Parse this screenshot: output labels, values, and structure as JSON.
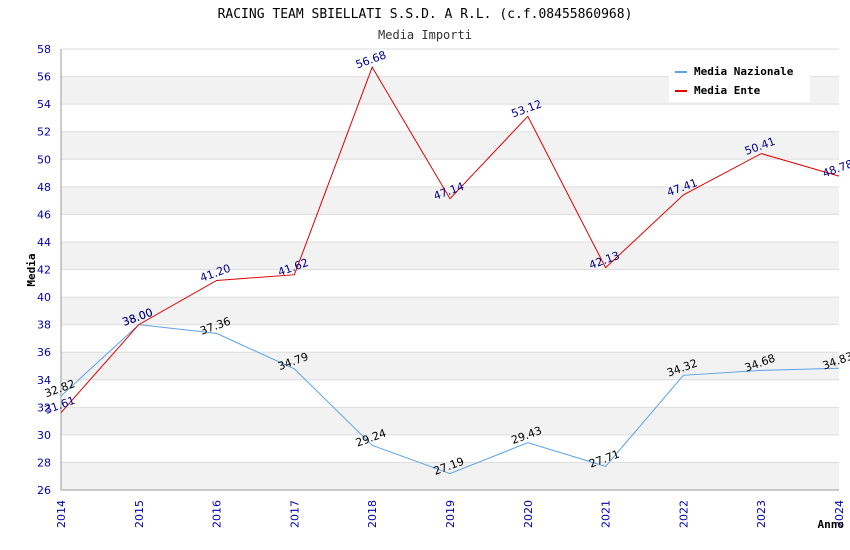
{
  "chart_data": {
    "type": "line",
    "title": "RACING TEAM SBIELLATI S.S.D. A R.L. (c.f.08455860968)",
    "subtitle": "Media Importi",
    "xlabel": "Anno",
    "ylabel": "Media",
    "x": [
      "2014",
      "2015",
      "2016",
      "2017",
      "2018",
      "2019",
      "2020",
      "2021",
      "2022",
      "2023",
      "2024"
    ],
    "ylim": [
      26,
      58
    ],
    "yticks": [
      "26",
      "28",
      "30",
      "32",
      "34",
      "36",
      "38",
      "40",
      "42",
      "44",
      "46",
      "48",
      "50",
      "52",
      "54",
      "56",
      "58"
    ],
    "grid": true,
    "legend_position": "top-right",
    "series": [
      {
        "name": "Media Nazionale",
        "color": "#5ba3e6",
        "label_color": "#000000",
        "values": [
          32.82,
          38.0,
          37.36,
          34.79,
          29.24,
          27.19,
          29.43,
          27.71,
          34.32,
          34.68,
          34.83
        ],
        "labels": [
          "32.82",
          "38.00",
          "37.36",
          "34.79",
          "29.24",
          "27.19",
          "29.43",
          "27.71",
          "34.32",
          "34.68",
          "34.83"
        ]
      },
      {
        "name": "Media Ente",
        "color": "#e00000",
        "label_color": "#000088",
        "values": [
          31.61,
          38.0,
          41.2,
          41.62,
          56.68,
          47.14,
          53.12,
          42.13,
          47.41,
          50.41,
          48.78
        ],
        "labels": [
          "31.61",
          "38.00",
          "41.20",
          "41.62",
          "56.68",
          "47.14",
          "53.12",
          "42.13",
          "47.41",
          "50.41",
          "48.78"
        ]
      }
    ]
  }
}
